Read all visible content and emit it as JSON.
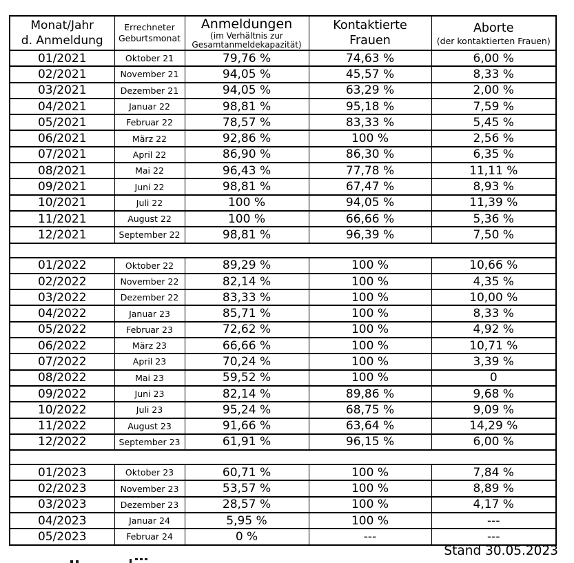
{
  "header": {
    "col1": {
      "line1": "Monat/Jahr",
      "line2": "d. Anmeldung"
    },
    "col2": {
      "line1": "Errechneter",
      "line2": "Geburtsmonat"
    },
    "col3": {
      "title": "Anmeldungen",
      "sub1": "(im Verhältnis zur",
      "sub2": "Gesamtanmeldekapazität)"
    },
    "col4": {
      "line1": "Kontaktierte",
      "line2": "Frauen"
    },
    "col5": {
      "title": "Aborte",
      "sub": "(der kontaktierten Frauen)"
    }
  },
  "sections": [
    {
      "rows": [
        [
          "01/2021",
          "Oktober 21",
          "79,76 %",
          "74,63 %",
          "6,00 %"
        ],
        [
          "02/2021",
          "November 21",
          "94,05 %",
          "45,57 %",
          "8,33 %"
        ],
        [
          "03/2021",
          "Dezember 21",
          "94,05 %",
          "63,29 %",
          "2,00 %"
        ],
        [
          "04/2021",
          "Januar 22",
          "98,81 %",
          "95,18 %",
          "7,59 %"
        ],
        [
          "05/2021",
          "Februar 22",
          "78,57 %",
          "83,33 %",
          "5,45 %"
        ],
        [
          "06/2021",
          "März 22",
          "92,86 %",
          "100 %",
          "2,56 %"
        ],
        [
          "07/2021",
          "April 22",
          "86,90 %",
          "86,30 %",
          "6,35 %"
        ],
        [
          "08/2021",
          "Mai 22",
          "96,43 %",
          "77,78 %",
          "11,11 %"
        ],
        [
          "09/2021",
          "Juni 22",
          "98,81 %",
          "67,47 %",
          "8,93 %"
        ],
        [
          "10/2021",
          "Juli 22",
          "100 %",
          "94,05 %",
          "11,39 %"
        ],
        [
          "11/2021",
          "August 22",
          "100 %",
          "66,66 %",
          "5,36 %"
        ],
        [
          "12/2021",
          "September 22",
          "98,81 %",
          "96,39 %",
          "7,50 %"
        ]
      ]
    },
    {
      "rows": [
        [
          "01/2022",
          "Oktober 22",
          "89,29 %",
          "100 %",
          "10,66 %"
        ],
        [
          "02/2022",
          "November 22",
          "82,14 %",
          "100 %",
          "4,35 %"
        ],
        [
          "03/2022",
          "Dezember 22",
          "83,33 %",
          "100 %",
          "10,00 %"
        ],
        [
          "04/2022",
          "Januar 23",
          "85,71 %",
          "100 %",
          "8,33 %"
        ],
        [
          "05/2022",
          "Februar 23",
          "72,62 %",
          "100 %",
          "4,92 %"
        ],
        [
          "06/2022",
          "März 23",
          "66,66 %",
          "100 %",
          "10,71 %"
        ],
        [
          "07/2022",
          "April 23",
          "70,24 %",
          "100 %",
          "3,39 %"
        ],
        [
          "08/2022",
          "Mai 23",
          "59,52 %",
          "100 %",
          "0"
        ],
        [
          "09/2022",
          "Juni 23",
          "82,14 %",
          "89,86 %",
          "9,68 %"
        ],
        [
          "10/2022",
          "Juli 23",
          "95,24 %",
          "68,75 %",
          "9,09 %"
        ],
        [
          "11/2022",
          "August 23",
          "91,66 %",
          "63,64 %",
          "14,29 %"
        ],
        [
          "12/2022",
          "September 23",
          "61,91 %",
          "96,15 %",
          "6,00 %"
        ]
      ]
    },
    {
      "rows": [
        [
          "01/2023",
          "Oktober 23",
          "60,71 %",
          "100 %",
          "7,84 %"
        ],
        [
          "02/2023",
          "November 23",
          "53,57 %",
          "100 %",
          "8,89 %"
        ],
        [
          "03/2023",
          "Dezember 23",
          "28,57 %",
          "100 %",
          "4,17 %"
        ],
        [
          "04/2023",
          "Januar 24",
          "5,95 %",
          "100 %",
          "---"
        ],
        [
          "05/2023",
          "Februar 24",
          "0 %",
          "---",
          "---"
        ]
      ]
    }
  ],
  "footer": {
    "stand": "Stand 30.05.2023"
  }
}
